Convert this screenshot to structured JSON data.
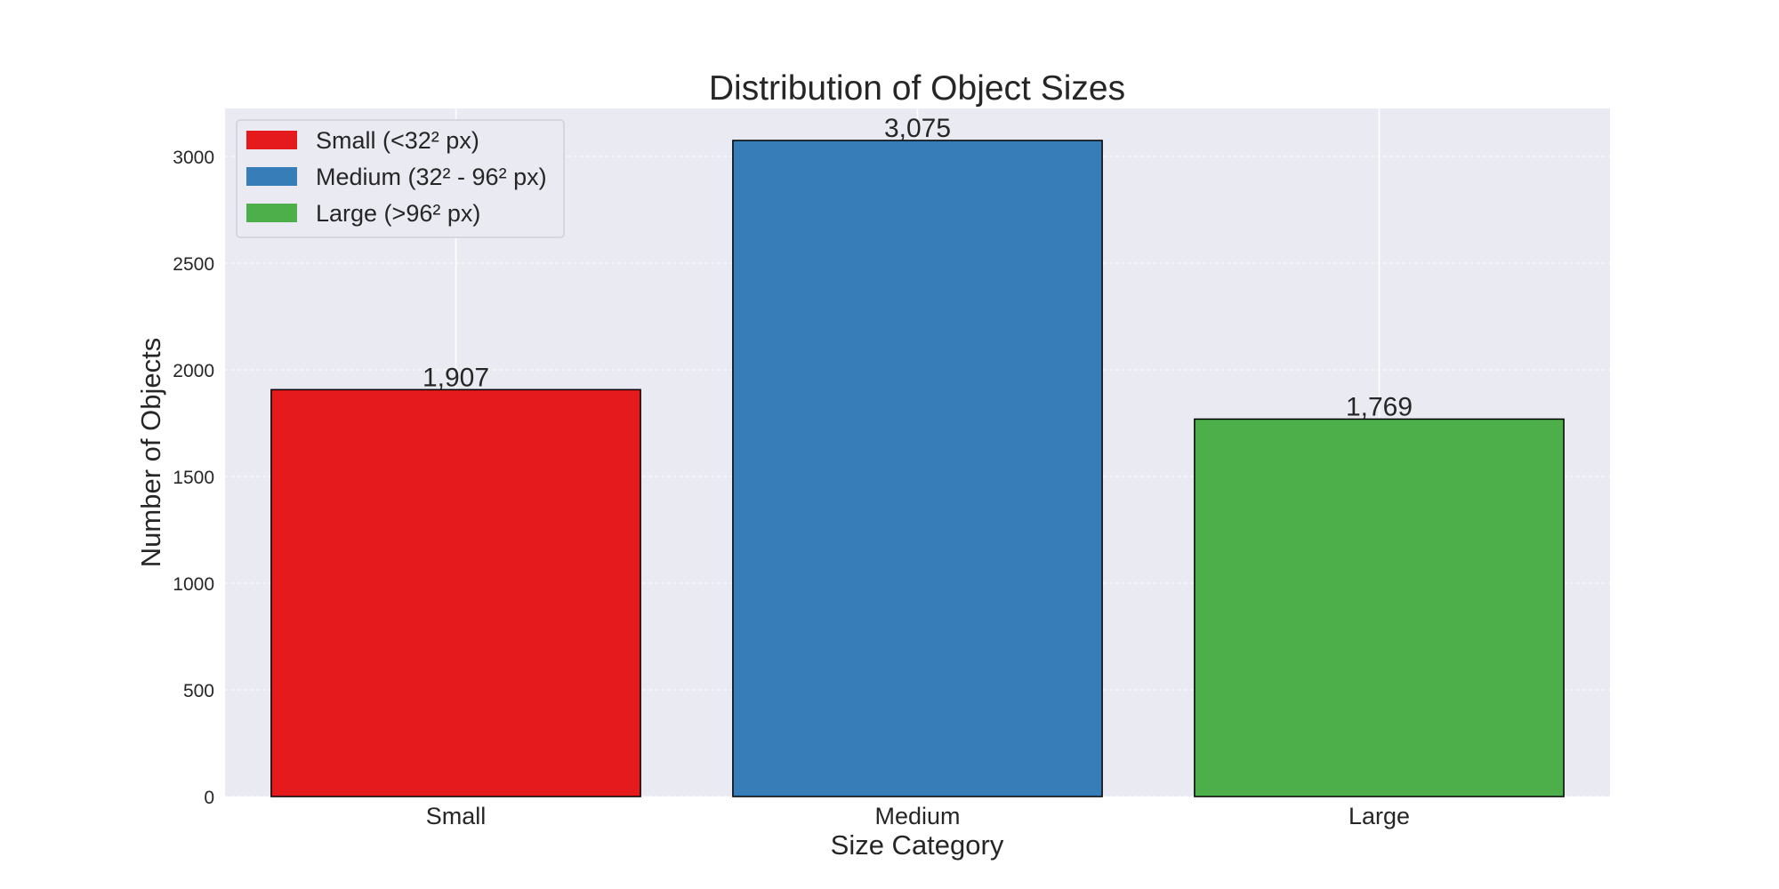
{
  "chart_data": {
    "type": "bar",
    "title": "Distribution of Object Sizes",
    "xlabel": "Size Category",
    "ylabel": "Number of Objects",
    "categories": [
      "Small",
      "Medium",
      "Large"
    ],
    "values": [
      1907,
      3075,
      1769
    ],
    "value_labels": [
      "1,907",
      "3,075",
      "1,769"
    ],
    "colors": [
      "#e41a1c",
      "#377eb8",
      "#4daf4a"
    ],
    "ylim": [
      0,
      3225
    ],
    "yticks": [
      0,
      500,
      1000,
      1500,
      2000,
      2500,
      3000
    ],
    "grid": true,
    "legend": {
      "placement": "top-left",
      "entries": [
        "Small (<32² px)",
        "Medium (32² - 96² px)",
        "Large (>96² px)"
      ]
    }
  }
}
